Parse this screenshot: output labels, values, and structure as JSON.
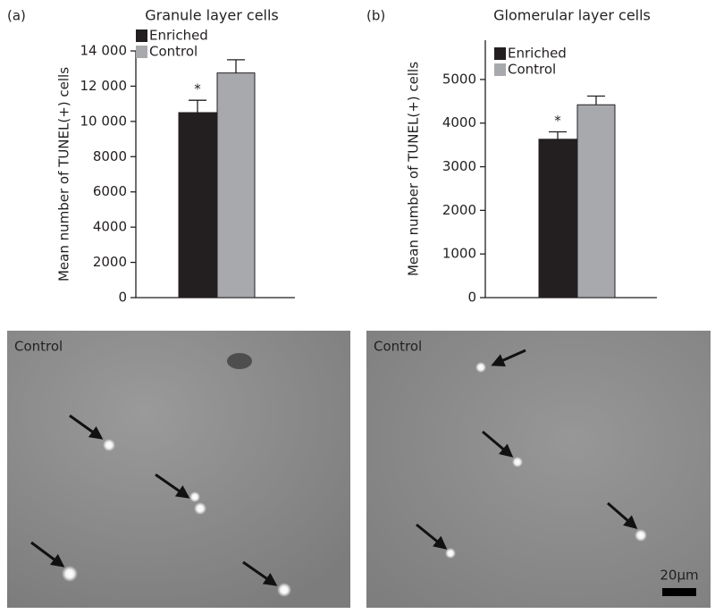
{
  "chart_data": [
    {
      "type": "bar",
      "panel_label": "(a)",
      "title": "Granule layer cells",
      "y_label": "Mean number of TUNEL(+) cells",
      "series": [
        {
          "name": "Enriched",
          "color": "#231f20",
          "values": [
            10500
          ],
          "errors": [
            700
          ]
        },
        {
          "name": "Control",
          "color": "#a7a9ac",
          "values": [
            12750
          ],
          "errors": [
            750
          ]
        }
      ],
      "annotation": "*",
      "ylim": [
        0,
        14000
      ],
      "yticks": [
        0,
        2000,
        4000,
        6000,
        8000,
        {
          "value": 10000,
          "label": "10 000"
        },
        {
          "value": 12000,
          "label": "12 000"
        },
        {
          "value": 14000,
          "label": "14 000"
        }
      ]
    },
    {
      "type": "bar",
      "panel_label": "(b)",
      "title": "Glomerular layer cells",
      "y_label": "Mean number of TUNEL(+) cells",
      "series": [
        {
          "name": "Enriched",
          "color": "#231f20",
          "values": [
            3630
          ],
          "errors": [
            170
          ]
        },
        {
          "name": "Control",
          "color": "#a7a9ac",
          "values": [
            4420
          ],
          "errors": [
            200
          ]
        }
      ],
      "annotation": "*",
      "ylim": [
        0,
        5900
      ],
      "yticks": [
        0,
        1000,
        2000,
        3000,
        4000,
        5000
      ]
    }
  ],
  "images": [
    {
      "label": "Control"
    },
    {
      "label": "Control",
      "scale_bar": "20µm"
    }
  ]
}
